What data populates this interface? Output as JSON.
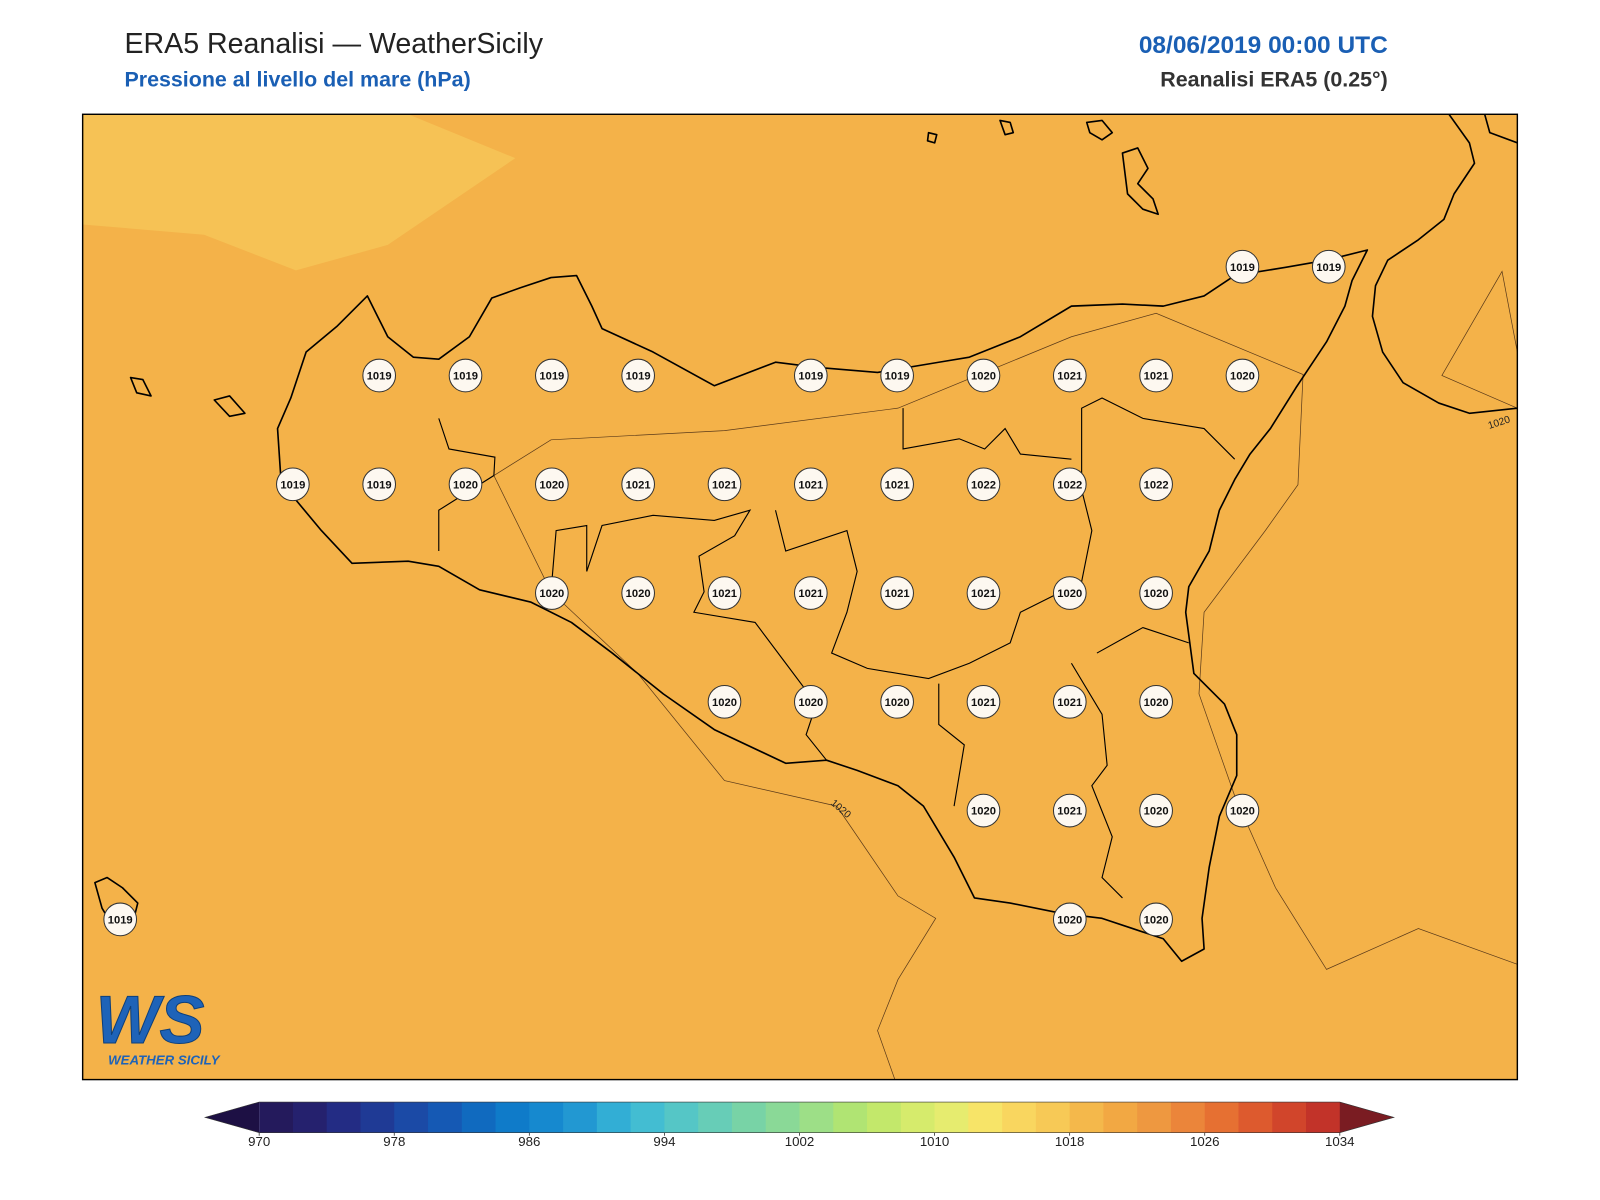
{
  "header": {
    "title": "ERA5 Reanalisi — WeatherSicily",
    "subtitle": "Pressione al livello del mare (hPa)",
    "datetime": "08/06/2019 00:00 UTC",
    "source": "Reanalisi ERA5 (0.25°)"
  },
  "map": {
    "stations": [
      1019,
      1019,
      1019,
      1019,
      1019,
      1019,
      1019,
      1019,
      1020,
      1021,
      1021,
      1020,
      1019,
      1019,
      1020,
      1020,
      1021,
      1021,
      1021,
      1021,
      1022,
      1022,
      1022,
      1020,
      1020,
      1021,
      1021,
      1021,
      1021,
      1020,
      1020,
      1020,
      1020,
      1020,
      1021,
      1021,
      1020,
      1020,
      1021,
      1020,
      1020,
      1019,
      1020,
      1020
    ],
    "contour_labels": [
      1020,
      1020
    ]
  },
  "colorbar": {
    "lim": [
      970,
      1034
    ],
    "ticks": [
      970,
      978,
      986,
      994,
      1002,
      1010,
      1018,
      1026,
      1034
    ],
    "colors": [
      "#241a5c",
      "#25216e",
      "#232c84",
      "#1f3a95",
      "#1b4aa6",
      "#1559b4",
      "#106abf",
      "#0f7bc9",
      "#1689cf",
      "#2298d2",
      "#32aed5",
      "#43bdd2",
      "#55c6c6",
      "#67cdb7",
      "#78d3a6",
      "#8ad997",
      "#9ddf87",
      "#b0e473",
      "#c3e86b",
      "#d6eb6c",
      "#e6ec6f",
      "#f7e468",
      "#f9d65f",
      "#f7c956",
      "#f4b84b",
      "#f2a843",
      "#ee9840",
      "#eb853a",
      "#e67032",
      "#dd5a2e",
      "#d1452b",
      "#c23329"
    ],
    "under_color": "#1d1044",
    "over_color": "#7a1c22"
  },
  "logo": {
    "mark": "WS",
    "name": "WEATHER SICILY"
  }
}
